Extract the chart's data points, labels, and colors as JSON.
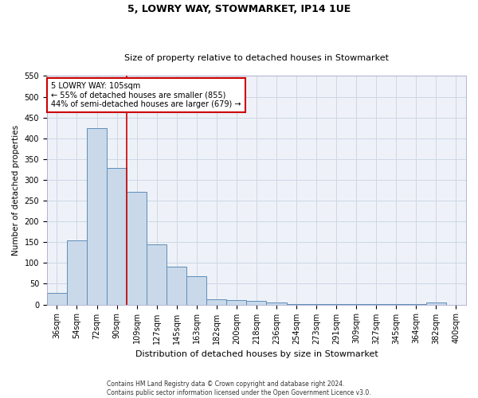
{
  "title": "5, LOWRY WAY, STOWMARKET, IP14 1UE",
  "subtitle": "Size of property relative to detached houses in Stowmarket",
  "xlabel": "Distribution of detached houses by size in Stowmarket",
  "ylabel": "Number of detached properties",
  "footer_line1": "Contains HM Land Registry data © Crown copyright and database right 2024.",
  "footer_line2": "Contains public sector information licensed under the Open Government Licence v3.0.",
  "bar_color": "#c9d9ea",
  "bar_edge_color": "#5f8db8",
  "grid_color": "#cdd7e5",
  "annotation_box_color": "#cc0000",
  "vline_color": "#cc0000",
  "categories": [
    "36sqm",
    "54sqm",
    "72sqm",
    "90sqm",
    "109sqm",
    "127sqm",
    "145sqm",
    "163sqm",
    "182sqm",
    "200sqm",
    "218sqm",
    "236sqm",
    "254sqm",
    "273sqm",
    "291sqm",
    "309sqm",
    "327sqm",
    "345sqm",
    "364sqm",
    "382sqm",
    "400sqm"
  ],
  "values": [
    27,
    155,
    425,
    328,
    272,
    145,
    91,
    68,
    13,
    10,
    9,
    4,
    2,
    1,
    1,
    1,
    1,
    1,
    1,
    4,
    0
  ],
  "annotation_text": "5 LOWRY WAY: 105sqm\n← 55% of detached houses are smaller (855)\n44% of semi-detached houses are larger (679) →",
  "ylim": [
    0,
    550
  ],
  "yticks": [
    0,
    50,
    100,
    150,
    200,
    250,
    300,
    350,
    400,
    450,
    500,
    550
  ],
  "vline_x": 3.5,
  "background_color": "#eef2f8",
  "title_fontsize": 9,
  "subtitle_fontsize": 8,
  "tick_fontsize": 7,
  "ylabel_fontsize": 7.5,
  "xlabel_fontsize": 8,
  "annot_fontsize": 7,
  "footer_fontsize": 5.5
}
